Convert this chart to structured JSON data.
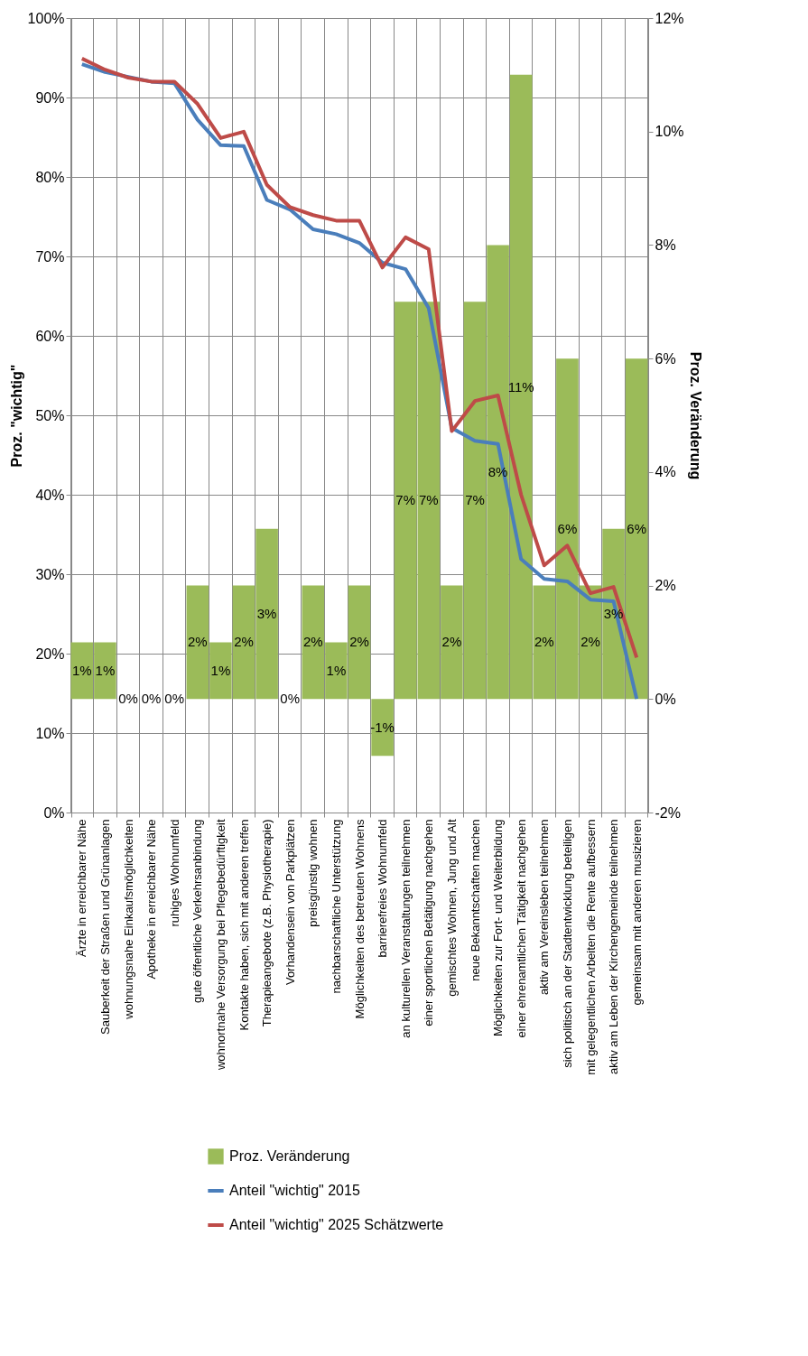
{
  "chart_data": {
    "type": "bar",
    "categories": [
      "Ärzte in erreichbarer Nähe",
      "Sauberkeit der Straßen und Grünanlagen",
      "wohnungsnahe Einkaufsmöglichkeiten",
      "Apotheke in erreichbarer Nähe",
      "ruhiges Wohnumfeld",
      "gute öffentliche Verkehrsanbindung",
      "wohnortnahe Versorgung bei Pflegebedürftigkeit",
      "Kontakte haben, sich mit anderen treffen",
      "Therapieangebote (z.B. Physiotherapie)",
      "Vorhandensein von Parkplätzen",
      "preisgünstig wohnen",
      "nachbarschaftliche Unterstützung",
      "Möglichkeiten des betreuten Wohnens",
      "barrierefreies Wohnumfeld",
      "an kulturellen Veranstaltungen teilnehmen",
      "einer sportlichen Betätigung nachgehen",
      "gemischtes Wohnen, Jung und Alt",
      "neue Bekanntschaften machen",
      "Möglichkeiten zur Fort- und Weiterbildung",
      "einer ehrenamtlichen Tätigkeit nachgehen",
      "aktiv am Vereinsleben teilnehmen",
      "sich politisch an der Stadtentwicklung beteiligen",
      "mit gelegentlichen Arbeiten die Rente aufbessern",
      "aktiv am Leben der Kirchengemeinde teilnehmen",
      "gemeinsam mit anderen musizieren"
    ],
    "series": [
      {
        "name": "Proz. Veränderung",
        "axis": "y2",
        "color": "#9bbb59",
        "values": [
          1,
          1,
          0,
          0,
          0,
          2,
          1,
          2,
          3,
          0,
          2,
          1,
          2,
          -1,
          7,
          7,
          2,
          7,
          8,
          11,
          2,
          6,
          2,
          3,
          6
        ],
        "value_labels": [
          "1%",
          "1%",
          "0%",
          "0%",
          "0%",
          "2%",
          "1%",
          "2%",
          "3%",
          "0%",
          "2%",
          "1%",
          "2%",
          "-1%",
          "7%",
          "7%",
          "2%",
          "7%",
          "8%",
          "11%",
          "2%",
          "6%",
          "2%",
          "3%",
          "6%"
        ]
      },
      {
        "name": "Anteil \"wichtig\" 2015",
        "type": "line",
        "axis": "y",
        "color": "#4a7ebb",
        "values": [
          94.2,
          93.2,
          92.6,
          92.0,
          91.8,
          87.2,
          84.0,
          83.9,
          77.1,
          75.9,
          73.4,
          72.8,
          71.7,
          69.2,
          68.4,
          63.5,
          48.4,
          46.8,
          46.4,
          31.9,
          29.4,
          29.1,
          26.8,
          26.6,
          14.3
        ]
      },
      {
        "name": "Anteil \"wichtig\" 2025 Schätzwerte",
        "type": "line",
        "axis": "y",
        "color": "#be4b48",
        "values": [
          94.9,
          93.5,
          92.5,
          92.0,
          92.0,
          89.2,
          84.9,
          85.7,
          79.0,
          76.2,
          75.2,
          74.5,
          74.5,
          68.6,
          72.4,
          70.9,
          48.0,
          51.8,
          52.5,
          40.0,
          31.1,
          33.6,
          27.6,
          28.4,
          19.5
        ]
      }
    ],
    "ylabel": "Proz. \"wichtig\"",
    "y2label": "Proz. Veränderung",
    "ylim": [
      0,
      100
    ],
    "yticks": [
      {
        "value": 0,
        "label": "0%"
      },
      {
        "value": 10,
        "label": "10%"
      },
      {
        "value": 20,
        "label": "20%"
      },
      {
        "value": 30,
        "label": "30%"
      },
      {
        "value": 40,
        "label": "40%"
      },
      {
        "value": 50,
        "label": "50%"
      },
      {
        "value": 60,
        "label": "60%"
      },
      {
        "value": 70,
        "label": "70%"
      },
      {
        "value": 80,
        "label": "80%"
      },
      {
        "value": 90,
        "label": "90%"
      },
      {
        "value": 100,
        "label": "100%"
      }
    ],
    "y2lim": [
      -2,
      12
    ],
    "y2ticks": [
      {
        "value": -2,
        "label": "-2%"
      },
      {
        "value": 0,
        "label": "0%"
      },
      {
        "value": 2,
        "label": "2%"
      },
      {
        "value": 4,
        "label": "4%"
      },
      {
        "value": 6,
        "label": "6%"
      },
      {
        "value": 8,
        "label": "8%"
      },
      {
        "value": 10,
        "label": "10%"
      },
      {
        "value": 12,
        "label": "12%"
      }
    ],
    "grid": true,
    "legend": "bottom",
    "marker": "none",
    "line_style": "solid"
  }
}
